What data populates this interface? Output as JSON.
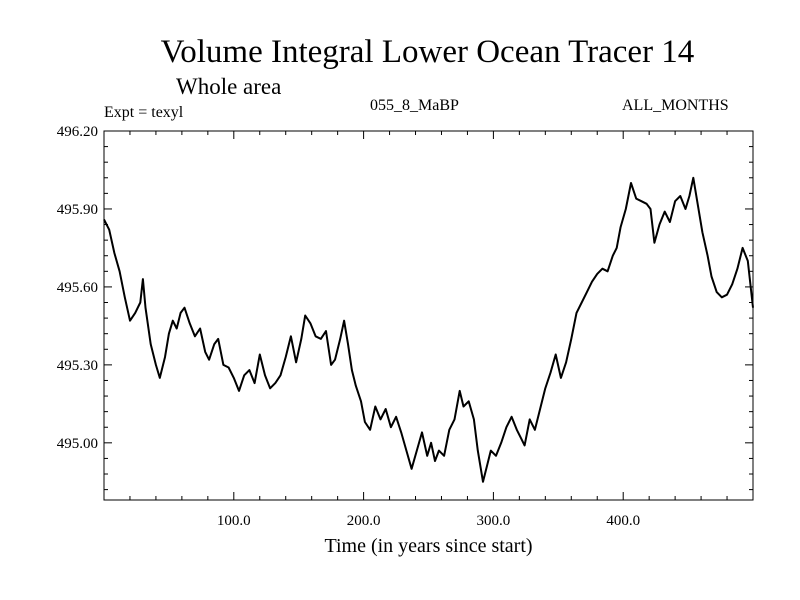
{
  "chart_data": {
    "type": "line",
    "title": "Volume Integral Lower Ocean Tracer 14",
    "subtitle": "Whole area",
    "annotations": {
      "left": "Expt = texyl",
      "center": "055_8_MaBP",
      "right": "ALL_MONTHS"
    },
    "xlabel": "Time (in years since start)",
    "ylabel": "",
    "xlim": [
      0,
      500
    ],
    "ylim": [
      494.78,
      496.2
    ],
    "x_ticks": [
      100,
      200,
      300,
      400
    ],
    "x_tick_labels": [
      "100.0",
      "200.0",
      "300.0",
      "400.0"
    ],
    "y_ticks": [
      495.0,
      495.3,
      495.6,
      495.9,
      496.2
    ],
    "y_tick_labels": [
      "495.00",
      "495.30",
      "495.60",
      "495.90",
      "496.20"
    ],
    "grid": false,
    "line_color": "#000000",
    "series": [
      {
        "points": [
          [
            0,
            495.86
          ],
          [
            4,
            495.82
          ],
          [
            8,
            495.73
          ],
          [
            12,
            495.66
          ],
          [
            16,
            495.56
          ],
          [
            20,
            495.47
          ],
          [
            24,
            495.5
          ],
          [
            28,
            495.54
          ],
          [
            30,
            495.63
          ],
          [
            32,
            495.52
          ],
          [
            36,
            495.38
          ],
          [
            40,
            495.3
          ],
          [
            43,
            495.25
          ],
          [
            47,
            495.33
          ],
          [
            50,
            495.42
          ],
          [
            53,
            495.47
          ],
          [
            56,
            495.44
          ],
          [
            59,
            495.5
          ],
          [
            62,
            495.52
          ],
          [
            66,
            495.46
          ],
          [
            70,
            495.41
          ],
          [
            74,
            495.44
          ],
          [
            78,
            495.35
          ],
          [
            81,
            495.32
          ],
          [
            85,
            495.38
          ],
          [
            88,
            495.4
          ],
          [
            92,
            495.3
          ],
          [
            96,
            495.29
          ],
          [
            100,
            495.25
          ],
          [
            104,
            495.2
          ],
          [
            108,
            495.26
          ],
          [
            112,
            495.28
          ],
          [
            116,
            495.23
          ],
          [
            120,
            495.34
          ],
          [
            124,
            495.26
          ],
          [
            128,
            495.21
          ],
          [
            132,
            495.23
          ],
          [
            136,
            495.26
          ],
          [
            140,
            495.33
          ],
          [
            144,
            495.41
          ],
          [
            148,
            495.31
          ],
          [
            152,
            495.4
          ],
          [
            155,
            495.49
          ],
          [
            159,
            495.46
          ],
          [
            163,
            495.41
          ],
          [
            167,
            495.4
          ],
          [
            171,
            495.43
          ],
          [
            175,
            495.3
          ],
          [
            178,
            495.32
          ],
          [
            182,
            495.4
          ],
          [
            185,
            495.47
          ],
          [
            188,
            495.38
          ],
          [
            191,
            495.28
          ],
          [
            194,
            495.22
          ],
          [
            198,
            495.16
          ],
          [
            201,
            495.08
          ],
          [
            205,
            495.05
          ],
          [
            209,
            495.14
          ],
          [
            213,
            495.09
          ],
          [
            217,
            495.13
          ],
          [
            221,
            495.06
          ],
          [
            225,
            495.1
          ],
          [
            229,
            495.04
          ],
          [
            233,
            494.97
          ],
          [
            237,
            494.9
          ],
          [
            241,
            494.97
          ],
          [
            245,
            495.04
          ],
          [
            249,
            494.95
          ],
          [
            252,
            495.0
          ],
          [
            255,
            494.93
          ],
          [
            258,
            494.97
          ],
          [
            262,
            494.95
          ],
          [
            266,
            495.05
          ],
          [
            270,
            495.09
          ],
          [
            274,
            495.2
          ],
          [
            277,
            495.14
          ],
          [
            281,
            495.16
          ],
          [
            285,
            495.09
          ],
          [
            288,
            494.97
          ],
          [
            292,
            494.85
          ],
          [
            295,
            494.91
          ],
          [
            298,
            494.97
          ],
          [
            302,
            494.95
          ],
          [
            306,
            495.0
          ],
          [
            310,
            495.06
          ],
          [
            314,
            495.1
          ],
          [
            318,
            495.05
          ],
          [
            321,
            495.02
          ],
          [
            324,
            494.99
          ],
          [
            328,
            495.09
          ],
          [
            332,
            495.05
          ],
          [
            336,
            495.13
          ],
          [
            340,
            495.21
          ],
          [
            344,
            495.27
          ],
          [
            348,
            495.34
          ],
          [
            352,
            495.25
          ],
          [
            356,
            495.31
          ],
          [
            360,
            495.4
          ],
          [
            364,
            495.5
          ],
          [
            368,
            495.54
          ],
          [
            372,
            495.58
          ],
          [
            376,
            495.62
          ],
          [
            380,
            495.65
          ],
          [
            384,
            495.67
          ],
          [
            388,
            495.66
          ],
          [
            392,
            495.72
          ],
          [
            395,
            495.75
          ],
          [
            398,
            495.83
          ],
          [
            402,
            495.9
          ],
          [
            406,
            496.0
          ],
          [
            410,
            495.94
          ],
          [
            414,
            495.93
          ],
          [
            418,
            495.92
          ],
          [
            421,
            495.9
          ],
          [
            424,
            495.77
          ],
          [
            428,
            495.84
          ],
          [
            432,
            495.89
          ],
          [
            436,
            495.85
          ],
          [
            440,
            495.93
          ],
          [
            444,
            495.95
          ],
          [
            448,
            495.9
          ],
          [
            451,
            495.95
          ],
          [
            454,
            496.02
          ],
          [
            457,
            495.93
          ],
          [
            461,
            495.81
          ],
          [
            465,
            495.72
          ],
          [
            468,
            495.64
          ],
          [
            472,
            495.58
          ],
          [
            476,
            495.56
          ],
          [
            480,
            495.57
          ],
          [
            484,
            495.61
          ],
          [
            488,
            495.67
          ],
          [
            492,
            495.75
          ],
          [
            496,
            495.7
          ],
          [
            500,
            495.52
          ]
        ]
      }
    ]
  }
}
